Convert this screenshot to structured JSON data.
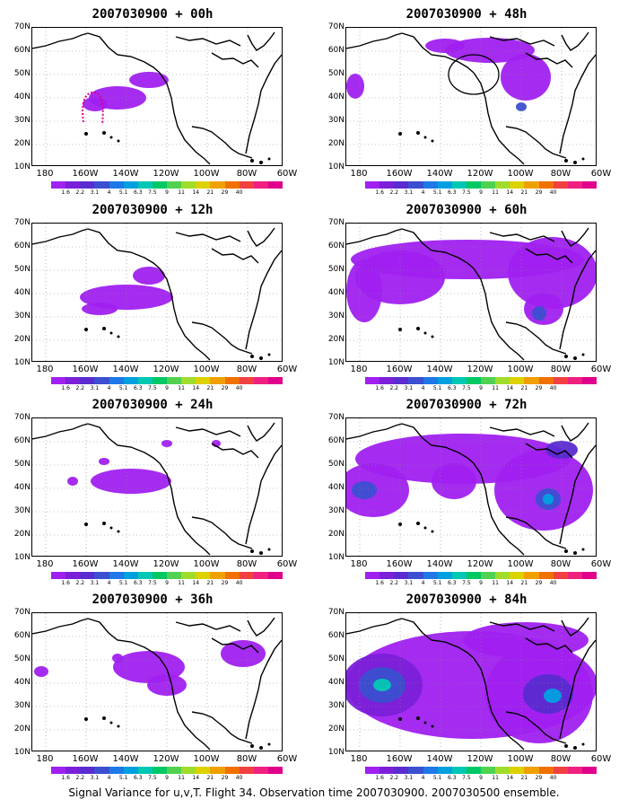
{
  "caption": "Signal Variance for u,v,T. Flight 34. Observation time 2007030900. 2007030500 ensemble.",
  "lat_labels": [
    "70N",
    "60N",
    "50N",
    "40N",
    "30N",
    "20N",
    "10N"
  ],
  "lon_labels": [
    "180",
    "160W",
    "140W",
    "120W",
    "100W",
    "80W",
    "60W"
  ],
  "colorbar": {
    "colors": [
      "#a020f0",
      "#7b1fd8",
      "#5a2bd0",
      "#3b4fd0",
      "#1e78e8",
      "#00a0e0",
      "#00c8b4",
      "#00c864",
      "#50d250",
      "#a0dc2c",
      "#dcd200",
      "#f0a000",
      "#f07000",
      "#f04040",
      "#f02080",
      "#e0008c"
    ],
    "labels": [
      "1.6",
      "2.2",
      "3.1",
      "4",
      "5.1",
      "6.3",
      "7.5",
      "9",
      "11",
      "14",
      "21",
      "29",
      "40"
    ]
  },
  "panels": [
    {
      "id": "p00",
      "title": "2007030900 + 00h"
    },
    {
      "id": "p12",
      "title": "2007030900 + 12h"
    },
    {
      "id": "p24",
      "title": "2007030900 + 24h"
    },
    {
      "id": "p36",
      "title": "2007030900 + 36h"
    },
    {
      "id": "p48",
      "title": "2007030900 + 48h"
    },
    {
      "id": "p60",
      "title": "2007030900 + 60h"
    },
    {
      "id": "p72",
      "title": "2007030900 + 72h"
    },
    {
      "id": "p84",
      "title": "2007030900 + 84h"
    }
  ]
}
